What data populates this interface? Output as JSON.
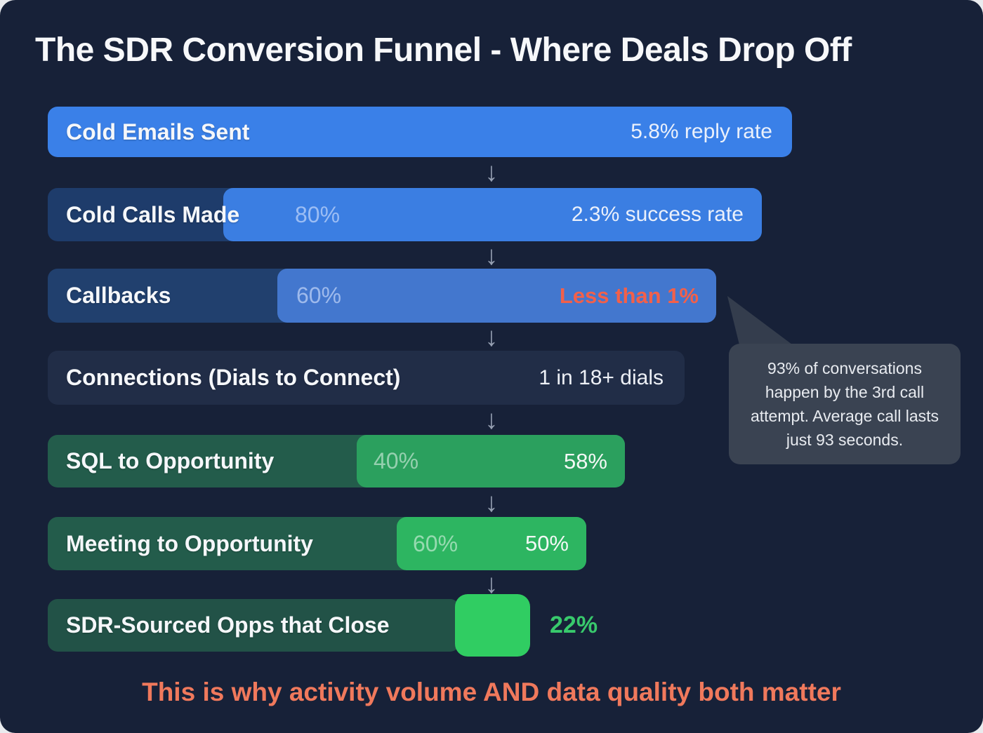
{
  "page": {
    "title": "The SDR Conversion Funnel - Where Deals Drop Off",
    "footer": "This is why activity volume AND data quality both matter"
  },
  "callout": {
    "text": "93% of conversations happen by the 3rd call attempt. Average call lasts just 93 seconds."
  },
  "icons": {
    "down_arrow": "↓"
  },
  "colors": {
    "card_background": "#172138",
    "funnel_blue": "#3A80E8",
    "funnel_blue_track": "#1E3C6B",
    "funnel_green": "#2BA05E",
    "funnel_green_track": "#235C4B",
    "funnel_bright_green": "#30CD62",
    "alert_orange": "#F2604A",
    "footer_salmon": "#F0795C",
    "callout_bg": "#3A4352",
    "arrow_gray": "#96A0B2"
  },
  "chart_data": {
    "type": "bar",
    "subtype": "funnel",
    "title": "The SDR Conversion Funnel - Where Deals Drop Off",
    "legend_position": "none",
    "grid": false,
    "stages": [
      {
        "label": "Cold Emails Sent",
        "step_pct": "",
        "outcome": "5.8% reply rate",
        "relative_width_pct": 100,
        "color": "#3A80E8"
      },
      {
        "label": "Cold Calls Made",
        "step_pct": "80%",
        "outcome": "2.3% success rate",
        "relative_width_pct": 96,
        "color": "#3B7EE2"
      },
      {
        "label": "Callbacks",
        "step_pct": "60%",
        "outcome": "Less than 1%",
        "relative_width_pct": 90,
        "color": "#4377CE"
      },
      {
        "label": "Connections (Dials to Connect)",
        "step_pct": "",
        "outcome": "1 in 18+ dials",
        "relative_width_pct": 86,
        "color": "#212D47"
      },
      {
        "label": "SQL to Opportunity",
        "step_pct": "40%",
        "outcome": "58%",
        "relative_width_pct": 78,
        "color": "#2BA05E"
      },
      {
        "label": "Meeting to Opportunity",
        "step_pct": "60%",
        "outcome": "50%",
        "relative_width_pct": 72,
        "color": "#2DB561"
      },
      {
        "label": "SDR-Sourced Opps that Close",
        "step_pct": "",
        "outcome": "22%",
        "relative_width_pct": 55,
        "color": "#30CD62"
      }
    ],
    "annotation": "93% of conversations happen by the 3rd call attempt. Average call lasts just 93 seconds."
  }
}
